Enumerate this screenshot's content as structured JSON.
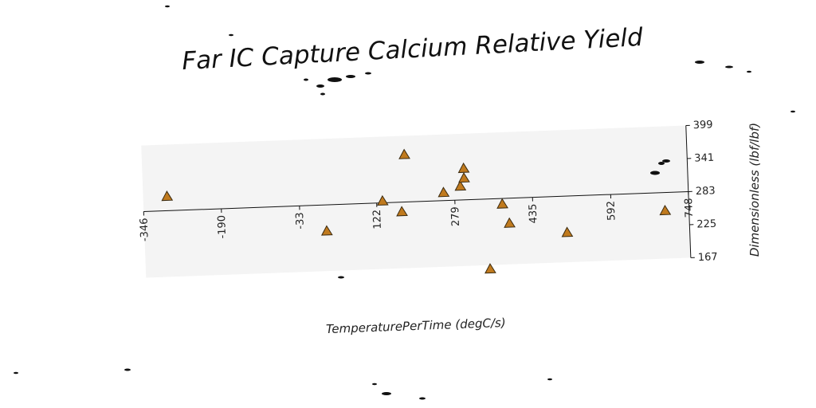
{
  "chart_data": {
    "type": "scatter",
    "title": "Far IC Capture Calcium Relative Yield",
    "xlabel": "TemperaturePerTime (degC/s)",
    "ylabel": "Dimensionless (lbf/lbf)",
    "xlim": [
      -346,
      748
    ],
    "ylim": [
      167,
      399
    ],
    "x_ticks": [
      "-346",
      "-190",
      "-33",
      "122",
      "279",
      "435",
      "592",
      "748"
    ],
    "y_ticks": [
      "167",
      "225",
      "283",
      "341",
      "399"
    ],
    "grid": false,
    "marker": "triangle",
    "colors": {
      "marker_fill": "#c07a1e",
      "marker_edge": "#3a2a10",
      "plot_bg": "#f4f4f4",
      "axis": "#111111"
    },
    "points": [
      {
        "x": -298,
        "y": 308
      },
      {
        "x": 20,
        "y": 237
      },
      {
        "x": 134,
        "y": 286
      },
      {
        "x": 181,
        "y": 366
      },
      {
        "x": 172,
        "y": 266
      },
      {
        "x": 257,
        "y": 297
      },
      {
        "x": 291,
        "y": 307
      },
      {
        "x": 299,
        "y": 338
      },
      {
        "x": 299,
        "y": 321
      },
      {
        "x": 345,
        "y": 160
      },
      {
        "x": 374,
        "y": 273
      },
      {
        "x": 387,
        "y": 239
      },
      {
        "x": 502,
        "y": 219
      },
      {
        "x": 700,
        "y": 251
      }
    ]
  }
}
